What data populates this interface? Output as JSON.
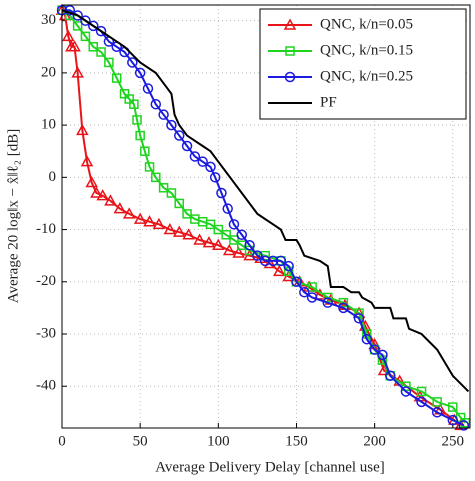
{
  "chart_data": {
    "type": "line",
    "xlabel": "Average Delivery Delay [channel use]",
    "ylabel": "Average 20 log‖x − x̂‖ℓ₂ [dB]",
    "xlim": [
      0,
      261
    ],
    "ylim": [
      -48,
      33
    ],
    "xticks": [
      0,
      50,
      100,
      150,
      200,
      250
    ],
    "yticks": [
      -40,
      -30,
      -20,
      -10,
      0,
      10,
      20,
      30
    ],
    "grid": true,
    "legend": "upper right",
    "series": [
      {
        "name": "QNC, k/n=0.05",
        "color": "#e8141a",
        "marker": "triangle",
        "x": [
          0,
          2,
          4,
          6,
          8,
          10,
          13,
          16,
          19,
          22,
          26,
          31,
          37,
          43,
          50,
          56,
          62,
          69,
          75,
          81,
          88,
          94,
          100,
          107,
          113,
          120,
          127,
          133,
          139,
          145,
          152,
          158,
          165,
          172,
          181,
          190,
          194,
          200,
          206,
          216,
          229,
          242,
          251,
          255
        ],
        "values": [
          32,
          31,
          27,
          25,
          25,
          20,
          9,
          3,
          -1,
          -3,
          -3.5,
          -4.5,
          -6,
          -7,
          -8,
          -8.5,
          -9,
          -10,
          -10.5,
          -11,
          -12,
          -12.5,
          -13,
          -14,
          -14.5,
          -15,
          -15.5,
          -16.5,
          -18,
          -19,
          -20,
          -21,
          -22.5,
          -23.5,
          -24.5,
          -26,
          -28.5,
          -32,
          -37,
          -39,
          -42,
          -44.5,
          -46.5,
          -47.5
        ]
      },
      {
        "name": "QNC, k/n=0.15",
        "color": "#1fd41f",
        "marker": "square",
        "x": [
          0,
          5,
          10,
          15,
          20,
          25,
          30,
          35,
          40,
          43,
          46,
          48,
          50,
          53,
          56,
          60,
          65,
          70,
          75,
          80,
          85,
          90,
          95,
          100,
          105,
          110,
          115,
          120,
          130,
          140,
          145,
          150,
          160,
          170,
          180,
          190,
          195,
          200,
          205,
          210,
          220,
          230,
          240,
          250,
          255,
          258
        ],
        "values": [
          32,
          31,
          29,
          27,
          25,
          24,
          22,
          19,
          16,
          15,
          14,
          11,
          8,
          5,
          2,
          0,
          -2,
          -3,
          -5,
          -7,
          -8,
          -8.5,
          -9,
          -10,
          -11,
          -12,
          -13,
          -14,
          -15,
          -16,
          -18,
          -20,
          -21,
          -23,
          -24,
          -26,
          -30,
          -33,
          -35,
          -38,
          -40,
          -41,
          -43,
          -44,
          -46,
          -47
        ]
      },
      {
        "name": "QNC, k/n=0.25",
        "color": "#1a1ae0",
        "marker": "circle",
        "x": [
          0,
          5,
          10,
          15,
          20,
          25,
          30,
          35,
          40,
          45,
          50,
          55,
          60,
          65,
          70,
          75,
          80,
          85,
          90,
          95,
          98,
          102,
          106,
          110,
          115,
          120,
          125,
          130,
          135,
          140,
          145,
          150,
          155,
          160,
          170,
          180,
          190,
          195,
          200,
          205,
          210,
          220,
          230,
          240,
          250,
          257
        ],
        "values": [
          32,
          32,
          31,
          30,
          29,
          28,
          26,
          25,
          24,
          22,
          20,
          17,
          14,
          12,
          10,
          8,
          6,
          4,
          3,
          2,
          0,
          -3,
          -6,
          -9,
          -11,
          -13,
          -15,
          -16,
          -16,
          -16,
          -17,
          -20,
          -22,
          -23,
          -24,
          -25,
          -27,
          -31,
          -33,
          -34,
          -38,
          -41,
          -43,
          -45,
          -46.5,
          -47.5
        ]
      },
      {
        "name": "PF",
        "color": "#000000",
        "marker": null,
        "x": [
          0,
          10,
          20,
          30,
          40,
          50,
          60,
          65,
          70,
          72,
          75,
          80,
          85,
          90,
          95,
          100,
          105,
          110,
          115,
          120,
          125,
          130,
          135,
          140,
          143,
          150,
          152,
          155,
          165,
          170,
          172,
          180,
          185,
          190,
          192,
          198,
          200,
          210,
          212,
          220,
          222,
          230,
          240,
          250,
          260
        ],
        "values": [
          32,
          31,
          29,
          27,
          25,
          22,
          20,
          18,
          16,
          12,
          10,
          8,
          7,
          6,
          5,
          3,
          1,
          -1,
          -3,
          -5,
          -7,
          -8,
          -9,
          -10,
          -12,
          -12,
          -13,
          -15,
          -16,
          -17,
          -21,
          -21,
          -22,
          -22,
          -23,
          -24,
          -25,
          -25,
          -27,
          -27,
          -29,
          -30,
          -33,
          -38,
          -41
        ]
      }
    ]
  }
}
